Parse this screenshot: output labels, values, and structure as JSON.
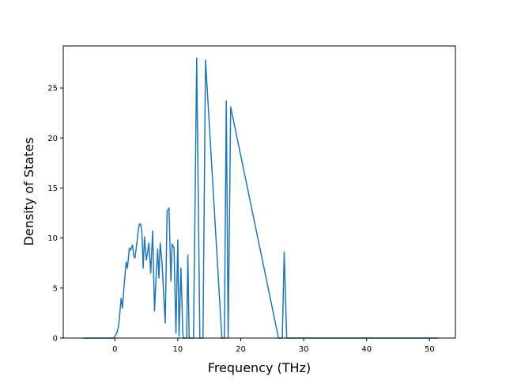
{
  "chart_data": {
    "type": "line",
    "title": "",
    "xlabel": "Frequency (THz)",
    "ylabel": "Density of States",
    "xlim": [
      -8.2,
      54.1
    ],
    "ylim": [
      0,
      29.2
    ],
    "xticks": [
      0,
      10,
      20,
      30,
      40,
      50
    ],
    "yticks": [
      0,
      5,
      10,
      15,
      20,
      25
    ],
    "grid": false,
    "legend": "none",
    "series": [
      {
        "color": "#1f77b4",
        "x": [
          -5.0,
          -1.0,
          -0.2,
          0.0,
          0.3,
          0.6,
          1.0,
          1.2,
          1.5,
          1.8,
          2.0,
          2.3,
          2.5,
          2.8,
          3.0,
          3.2,
          3.5,
          3.7,
          3.9,
          4.1,
          4.3,
          4.5,
          4.7,
          5.0,
          5.2,
          5.4,
          5.7,
          6.0,
          6.3,
          6.5,
          6.8,
          7.0,
          7.2,
          7.5,
          7.7,
          8.0,
          8.3,
          8.6,
          8.9,
          9.1,
          9.4,
          9.7,
          10.0,
          10.2,
          10.5,
          10.8,
          10.9,
          11.1,
          11.4,
          11.6,
          11.8,
          12.0,
          12.2,
          12.5,
          13.0,
          13.5,
          13.8,
          14.0,
          14.4,
          17.0,
          17.4,
          17.7,
          18.0,
          18.4,
          26.0,
          26.4,
          26.6,
          26.9,
          27.3,
          27.8,
          28.0,
          28.3,
          28.6,
          28.9,
          29.2,
          29.5,
          29.8,
          30.4,
          30.8,
          31.0,
          31.3,
          51.3
        ],
        "y": [
          0,
          0,
          0,
          0.2,
          0.5,
          1.2,
          4.0,
          3.0,
          5.5,
          7.6,
          7.0,
          9.0,
          8.8,
          9.3,
          8.2,
          8.0,
          9.5,
          10.7,
          11.4,
          11.4,
          10.5,
          7.0,
          10.1,
          7.8,
          8.6,
          9.5,
          6.5,
          10.7,
          2.7,
          5.5,
          8.9,
          6.0,
          9.5,
          7.5,
          5.0,
          1.5,
          12.7,
          13.0,
          5.7,
          9.4,
          9.0,
          0.5,
          9.8,
          0.2,
          7.0,
          0.4,
          0,
          0,
          0,
          8.3,
          0,
          0,
          0,
          0,
          28.0,
          0,
          0,
          0,
          27.8,
          0,
          0,
          23.7,
          0,
          23.1,
          0,
          0,
          0,
          8.6,
          0,
          0,
          0,
          0,
          0,
          0,
          0,
          0,
          0,
          0,
          0,
          0,
          0,
          0
        ]
      }
    ]
  }
}
